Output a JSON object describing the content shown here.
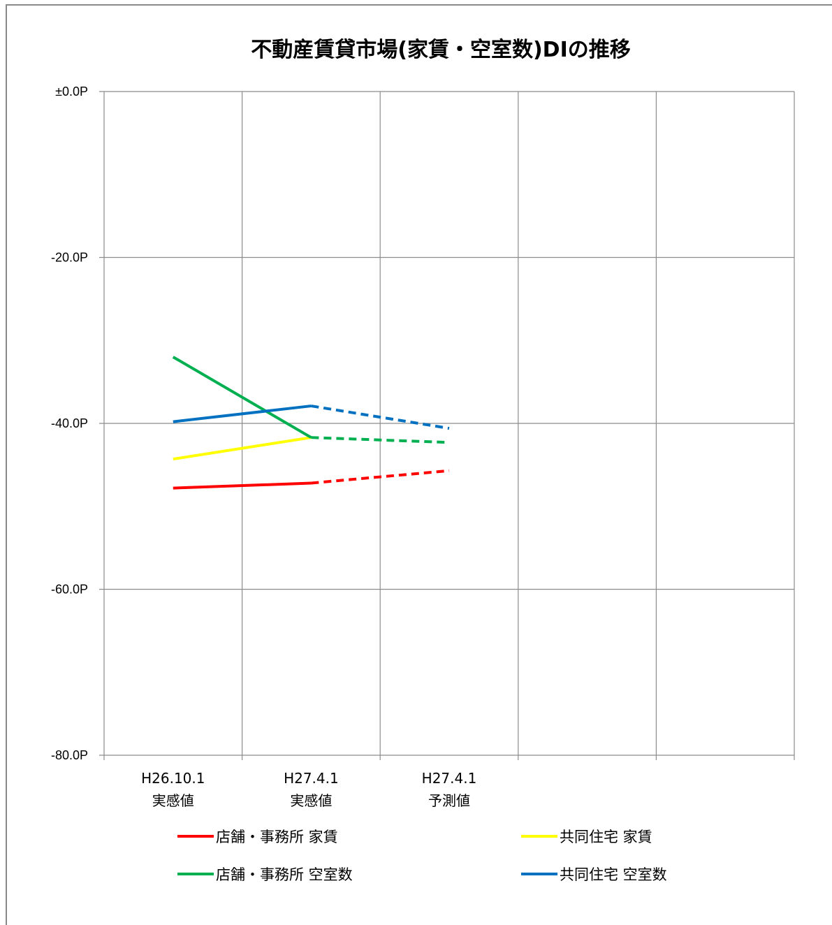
{
  "chart_data": {
    "type": "line",
    "title": "不動産賃貸市場(家賃・空室数)DIの推移",
    "xlabel": "",
    "ylabel": "",
    "categories": [
      [
        "H26.10.1",
        "実感値"
      ],
      [
        "H27.4.1",
        "実感値"
      ],
      [
        "H27.4.1",
        "予測値"
      ],
      [
        "",
        ""
      ],
      [
        "",
        ""
      ]
    ],
    "ylim": [
      -80,
      0
    ],
    "y_ticks": [
      {
        "value": 0,
        "label": "±0.0P"
      },
      {
        "value": -20,
        "label": "-20.0P"
      },
      {
        "value": -40,
        "label": "-40.0P"
      },
      {
        "value": -60,
        "label": "-60.0P"
      },
      {
        "value": -80,
        "label": "-80.0P"
      }
    ],
    "grid": true,
    "legend_position": "bottom",
    "series": [
      {
        "name": "店舗・事務所 家賃",
        "color": "#ff0000",
        "actual": [
          -47.8,
          -47.2
        ],
        "forecast": -45.7
      },
      {
        "name": "共同住宅 家賃",
        "color": "#ffff00",
        "actual": [
          -44.3,
          -41.7
        ],
        "forecast": null
      },
      {
        "name": "店舗・事務所 空室数",
        "color": "#00b050",
        "actual": [
          -32.0,
          -41.7
        ],
        "forecast": -42.3
      },
      {
        "name": "共同住宅 空室数",
        "color": "#0070c0",
        "actual": [
          -39.8,
          -37.9
        ],
        "forecast": -40.6
      }
    ]
  }
}
